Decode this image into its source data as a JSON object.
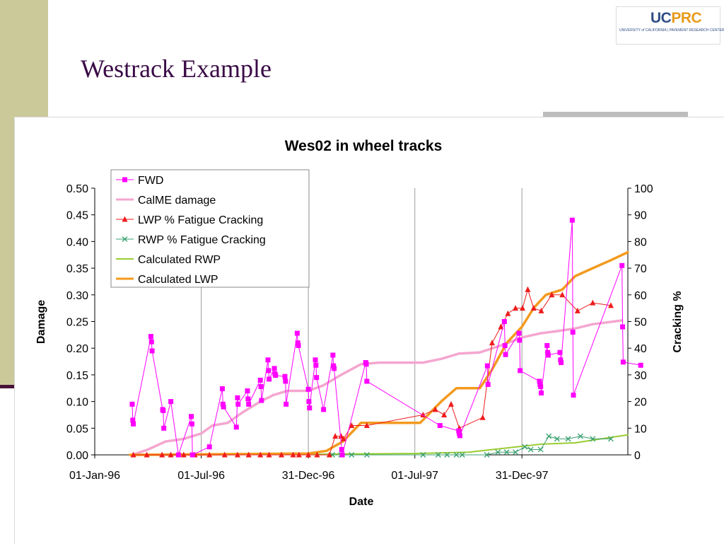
{
  "slide": {
    "title": "Westrack Example",
    "logo": {
      "uc": "UC",
      "prc": "PRC",
      "subtitle": "UNIVERSITY of CALIFORNIA | PAVEMENT RESEARCH CENTER · Davis · Berkeley"
    }
  },
  "chart_data": {
    "type": "line",
    "title": "Wes02 in wheel tracks",
    "xlabel": "Date",
    "ylabel": "Damage",
    "y2label": "Cracking %",
    "x_ticks": [
      "1996-01-01",
      "1996-07-01",
      "1996-12-31",
      "1997-07-01",
      "1997-12-31"
    ],
    "x_tick_labels": [
      "01-Jan-96",
      "01-Jul-96",
      "31-Dec-96",
      "01-Jul-97",
      "31-Dec-97"
    ],
    "xlim": [
      "1996-01-01",
      "1998-06-30"
    ],
    "ylim": [
      0,
      0.5
    ],
    "y_ticks": [
      0,
      0.05,
      0.1,
      0.15,
      0.2,
      0.25,
      0.3,
      0.35,
      0.4,
      0.45,
      0.5
    ],
    "y_tick_labels": [
      "0.00",
      "0.05",
      "0.10",
      "0.15",
      "0.20",
      "0.25",
      "0.30",
      "0.35",
      "0.40",
      "0.45",
      "0.50"
    ],
    "y2lim": [
      0,
      100
    ],
    "y2_ticks": [
      0,
      10,
      20,
      30,
      40,
      50,
      60,
      70,
      80,
      90,
      100
    ],
    "y2_tick_labels": [
      "0",
      "10",
      "20",
      "30",
      "40",
      "50",
      "60",
      "70",
      "80",
      "90",
      "100"
    ],
    "grid": "vertical major gridlines",
    "legend": "top-left, inside plot",
    "series": [
      {
        "name": "FWD",
        "axis": "left",
        "color": "#ff00ff",
        "marker": "square",
        "line_width": 1,
        "points": [
          [
            "1996-03-05",
            0.095
          ],
          [
            "1996-03-06",
            0.065
          ],
          [
            "1996-03-07",
            0.058
          ],
          [
            "1996-04-06",
            0.222
          ],
          [
            "1996-04-07",
            0.212
          ],
          [
            "1996-04-08",
            0.195
          ],
          [
            "1996-04-26",
            0.085
          ],
          [
            "1996-04-27",
            0.083
          ],
          [
            "1996-04-28",
            0.05
          ],
          [
            "1996-05-10",
            0.1
          ],
          [
            "1996-05-23",
            0.0
          ],
          [
            "1996-06-14",
            0.072
          ],
          [
            "1996-06-15",
            0.058
          ],
          [
            "1996-06-16",
            0.0
          ],
          [
            "1996-07-15",
            0.015
          ],
          [
            "1996-08-06",
            0.124
          ],
          [
            "1996-08-07",
            0.095
          ],
          [
            "1996-08-08",
            0.09
          ],
          [
            "1996-08-30",
            0.052
          ],
          [
            "1996-09-01",
            0.107
          ],
          [
            "1996-09-02",
            0.095
          ],
          [
            "1996-09-18",
            0.12
          ],
          [
            "1996-09-19",
            0.105
          ],
          [
            "1996-09-20",
            0.095
          ],
          [
            "1996-10-10",
            0.14
          ],
          [
            "1996-10-11",
            0.128
          ],
          [
            "1996-10-12",
            0.102
          ],
          [
            "1996-10-23",
            0.178
          ],
          [
            "1996-10-24",
            0.158
          ],
          [
            "1996-10-25",
            0.142
          ],
          [
            "1996-11-03",
            0.162
          ],
          [
            "1996-11-04",
            0.152
          ],
          [
            "1996-11-05",
            0.149
          ],
          [
            "1996-11-21",
            0.147
          ],
          [
            "1996-11-22",
            0.138
          ],
          [
            "1996-11-23",
            0.095
          ],
          [
            "1996-12-12",
            0.228
          ],
          [
            "1996-12-13",
            0.21
          ],
          [
            "1996-12-14",
            0.205
          ],
          [
            "1996-12-31",
            0.123
          ],
          [
            "1997-01-01",
            0.1
          ],
          [
            "1997-01-02",
            0.088
          ],
          [
            "1997-01-12",
            0.178
          ],
          [
            "1997-01-13",
            0.168
          ],
          [
            "1997-01-14",
            0.145
          ],
          [
            "1997-01-26",
            0.085
          ],
          [
            "1997-02-11",
            0.187
          ],
          [
            "1997-02-12",
            0.167
          ],
          [
            "1997-02-13",
            0.162
          ],
          [
            "1997-02-26",
            0.01
          ],
          [
            "1997-02-27",
            0.0
          ],
          [
            "1997-04-08",
            0.173
          ],
          [
            "1997-04-09",
            0.17
          ],
          [
            "1997-04-10",
            0.138
          ],
          [
            "1997-08-13",
            0.055
          ],
          [
            "1997-09-14",
            0.045
          ],
          [
            "1997-09-15",
            0.04
          ],
          [
            "1997-09-16",
            0.036
          ],
          [
            "1997-11-02",
            0.167
          ],
          [
            "1997-11-03",
            0.132
          ],
          [
            "1997-12-01",
            0.25
          ],
          [
            "1997-12-02",
            0.205
          ],
          [
            "1997-12-03",
            0.188
          ],
          [
            "1997-12-26",
            0.228
          ],
          [
            "1997-12-27",
            0.215
          ],
          [
            "1997-12-28",
            0.158
          ],
          [
            "1998-01-30",
            0.138
          ],
          [
            "1998-01-31",
            0.132
          ],
          [
            "1998-02-01",
            0.128
          ],
          [
            "1998-02-02",
            0.116
          ],
          [
            "1998-02-12",
            0.205
          ],
          [
            "1998-02-13",
            0.192
          ],
          [
            "1998-02-14",
            0.187
          ],
          [
            "1998-03-06",
            0.192
          ],
          [
            "1998-03-07",
            0.178
          ],
          [
            "1998-03-08",
            0.173
          ],
          [
            "1998-03-27",
            0.44
          ],
          [
            "1998-03-28",
            0.23
          ],
          [
            "1998-03-29",
            0.112
          ],
          [
            "1998-06-20",
            0.355
          ],
          [
            "1998-06-21",
            0.24
          ],
          [
            "1998-06-22",
            0.174
          ],
          [
            "1998-07-22",
            0.168
          ]
        ]
      },
      {
        "name": "CalME damage",
        "axis": "left",
        "color": "#f4a6cf",
        "marker": "none",
        "line_width": 3.5,
        "points": [
          [
            "1996-03-05",
            0.0
          ],
          [
            "1996-04-01",
            0.01
          ],
          [
            "1996-05-01",
            0.025
          ],
          [
            "1996-06-01",
            0.03
          ],
          [
            "1996-07-01",
            0.04
          ],
          [
            "1996-07-20",
            0.055
          ],
          [
            "1996-08-15",
            0.06
          ],
          [
            "1996-09-10",
            0.08
          ],
          [
            "1996-10-10",
            0.1
          ],
          [
            "1996-11-01",
            0.112
          ],
          [
            "1996-11-25",
            0.12
          ],
          [
            "1996-12-31",
            0.12
          ],
          [
            "1997-01-25",
            0.13
          ],
          [
            "1997-02-25",
            0.15
          ],
          [
            "1997-03-31",
            0.17
          ],
          [
            "1997-05-01",
            0.173
          ],
          [
            "1997-07-15",
            0.173
          ],
          [
            "1997-08-15",
            0.18
          ],
          [
            "1997-09-15",
            0.19
          ],
          [
            "1997-10-20",
            0.192
          ],
          [
            "1997-11-25",
            0.205
          ],
          [
            "1997-12-31",
            0.22
          ],
          [
            "1998-02-01",
            0.228
          ],
          [
            "1998-03-01",
            0.232
          ],
          [
            "1998-04-01",
            0.237
          ],
          [
            "1998-05-01",
            0.245
          ],
          [
            "1998-06-20",
            0.252
          ]
        ]
      },
      {
        "name": "LWP % Fatigue Cracking",
        "axis": "right",
        "color": "#ee1c1c",
        "marker": "triangle",
        "line_width": 1,
        "points": [
          [
            "1996-03-07",
            0
          ],
          [
            "1996-03-30",
            0
          ],
          [
            "1996-04-25",
            0
          ],
          [
            "1996-05-10",
            0
          ],
          [
            "1996-06-01",
            0
          ],
          [
            "1996-06-20",
            0
          ],
          [
            "1996-07-15",
            0
          ],
          [
            "1996-08-10",
            0
          ],
          [
            "1996-09-01",
            0
          ],
          [
            "1996-09-20",
            0
          ],
          [
            "1996-10-10",
            0
          ],
          [
            "1996-10-25",
            0
          ],
          [
            "1996-11-15",
            0
          ],
          [
            "1996-12-05",
            0
          ],
          [
            "1996-12-15",
            0
          ],
          [
            "1996-12-31",
            0
          ],
          [
            "1997-01-15",
            0
          ],
          [
            "1997-02-05",
            0
          ],
          [
            "1997-02-15",
            7
          ],
          [
            "1997-02-25",
            7
          ],
          [
            "1997-03-01",
            6
          ],
          [
            "1997-03-15",
            11
          ],
          [
            "1997-04-10",
            11
          ],
          [
            "1997-07-15",
            15
          ],
          [
            "1997-08-05",
            17
          ],
          [
            "1997-08-20",
            15
          ],
          [
            "1997-09-01",
            19
          ],
          [
            "1997-09-15",
            10
          ],
          [
            "1997-10-25",
            14
          ],
          [
            "1997-11-10",
            42
          ],
          [
            "1997-11-25",
            48
          ],
          [
            "1997-12-07",
            53
          ],
          [
            "1997-12-20",
            55
          ],
          [
            "1998-01-01",
            55
          ],
          [
            "1998-01-10",
            62
          ],
          [
            "1998-01-20",
            55
          ],
          [
            "1998-02-02",
            54
          ],
          [
            "1998-02-20",
            60
          ],
          [
            "1998-03-10",
            60
          ],
          [
            "1998-04-05",
            54
          ],
          [
            "1998-05-01",
            57
          ],
          [
            "1998-06-01",
            56
          ]
        ]
      },
      {
        "name": "RWP % Fatigue Cracking",
        "axis": "right",
        "color": "#3aa070",
        "marker": "x",
        "line_width": 1,
        "points": [
          [
            "1997-02-10",
            0
          ],
          [
            "1997-02-25",
            0
          ],
          [
            "1997-03-15",
            0
          ],
          [
            "1997-04-10",
            0
          ],
          [
            "1997-07-15",
            0
          ],
          [
            "1997-08-10",
            0
          ],
          [
            "1997-08-25",
            0
          ],
          [
            "1997-09-10",
            0
          ],
          [
            "1997-09-20",
            0
          ],
          [
            "1997-11-01",
            0
          ],
          [
            "1997-11-20",
            1
          ],
          [
            "1997-12-05",
            1
          ],
          [
            "1997-12-20",
            1
          ],
          [
            "1998-01-05",
            3
          ],
          [
            "1998-01-15",
            2
          ],
          [
            "1998-02-01",
            2
          ],
          [
            "1998-02-15",
            7
          ],
          [
            "1998-03-01",
            6
          ],
          [
            "1998-03-20",
            6
          ],
          [
            "1998-04-10",
            7
          ],
          [
            "1998-05-01",
            6
          ],
          [
            "1998-06-01",
            6
          ]
        ]
      },
      {
        "name": "Calculated RWP",
        "axis": "right",
        "color": "#99cc33",
        "marker": "none",
        "line_width": 2,
        "points": [
          [
            "1996-03-01",
            0
          ],
          [
            "1997-01-01",
            0.2
          ],
          [
            "1997-07-01",
            0.5
          ],
          [
            "1997-10-01",
            1
          ],
          [
            "1997-12-01",
            2.5
          ],
          [
            "1998-02-01",
            4
          ],
          [
            "1998-04-01",
            4.5
          ],
          [
            "1998-05-15",
            6
          ],
          [
            "1998-06-30",
            7.5
          ]
        ]
      },
      {
        "name": "Calculated LWP",
        "axis": "right",
        "color": "#f39a1e",
        "marker": "none",
        "line_width": 3.5,
        "points": [
          [
            "1996-03-01",
            0
          ],
          [
            "1996-12-31",
            0.5
          ],
          [
            "1997-01-31",
            1.5
          ],
          [
            "1997-02-28",
            5
          ],
          [
            "1997-03-31",
            12
          ],
          [
            "1997-07-10",
            12
          ],
          [
            "1997-08-15",
            20
          ],
          [
            "1997-09-10",
            25
          ],
          [
            "1997-10-20",
            25
          ],
          [
            "1997-11-10",
            32
          ],
          [
            "1997-12-05",
            42
          ],
          [
            "1997-12-31",
            48
          ],
          [
            "1998-01-20",
            55
          ],
          [
            "1998-02-10",
            60
          ],
          [
            "1998-03-10",
            62
          ],
          [
            "1998-04-01",
            67
          ],
          [
            "1998-05-01",
            70
          ],
          [
            "1998-06-01",
            73
          ],
          [
            "1998-06-30",
            76
          ]
        ]
      }
    ]
  }
}
